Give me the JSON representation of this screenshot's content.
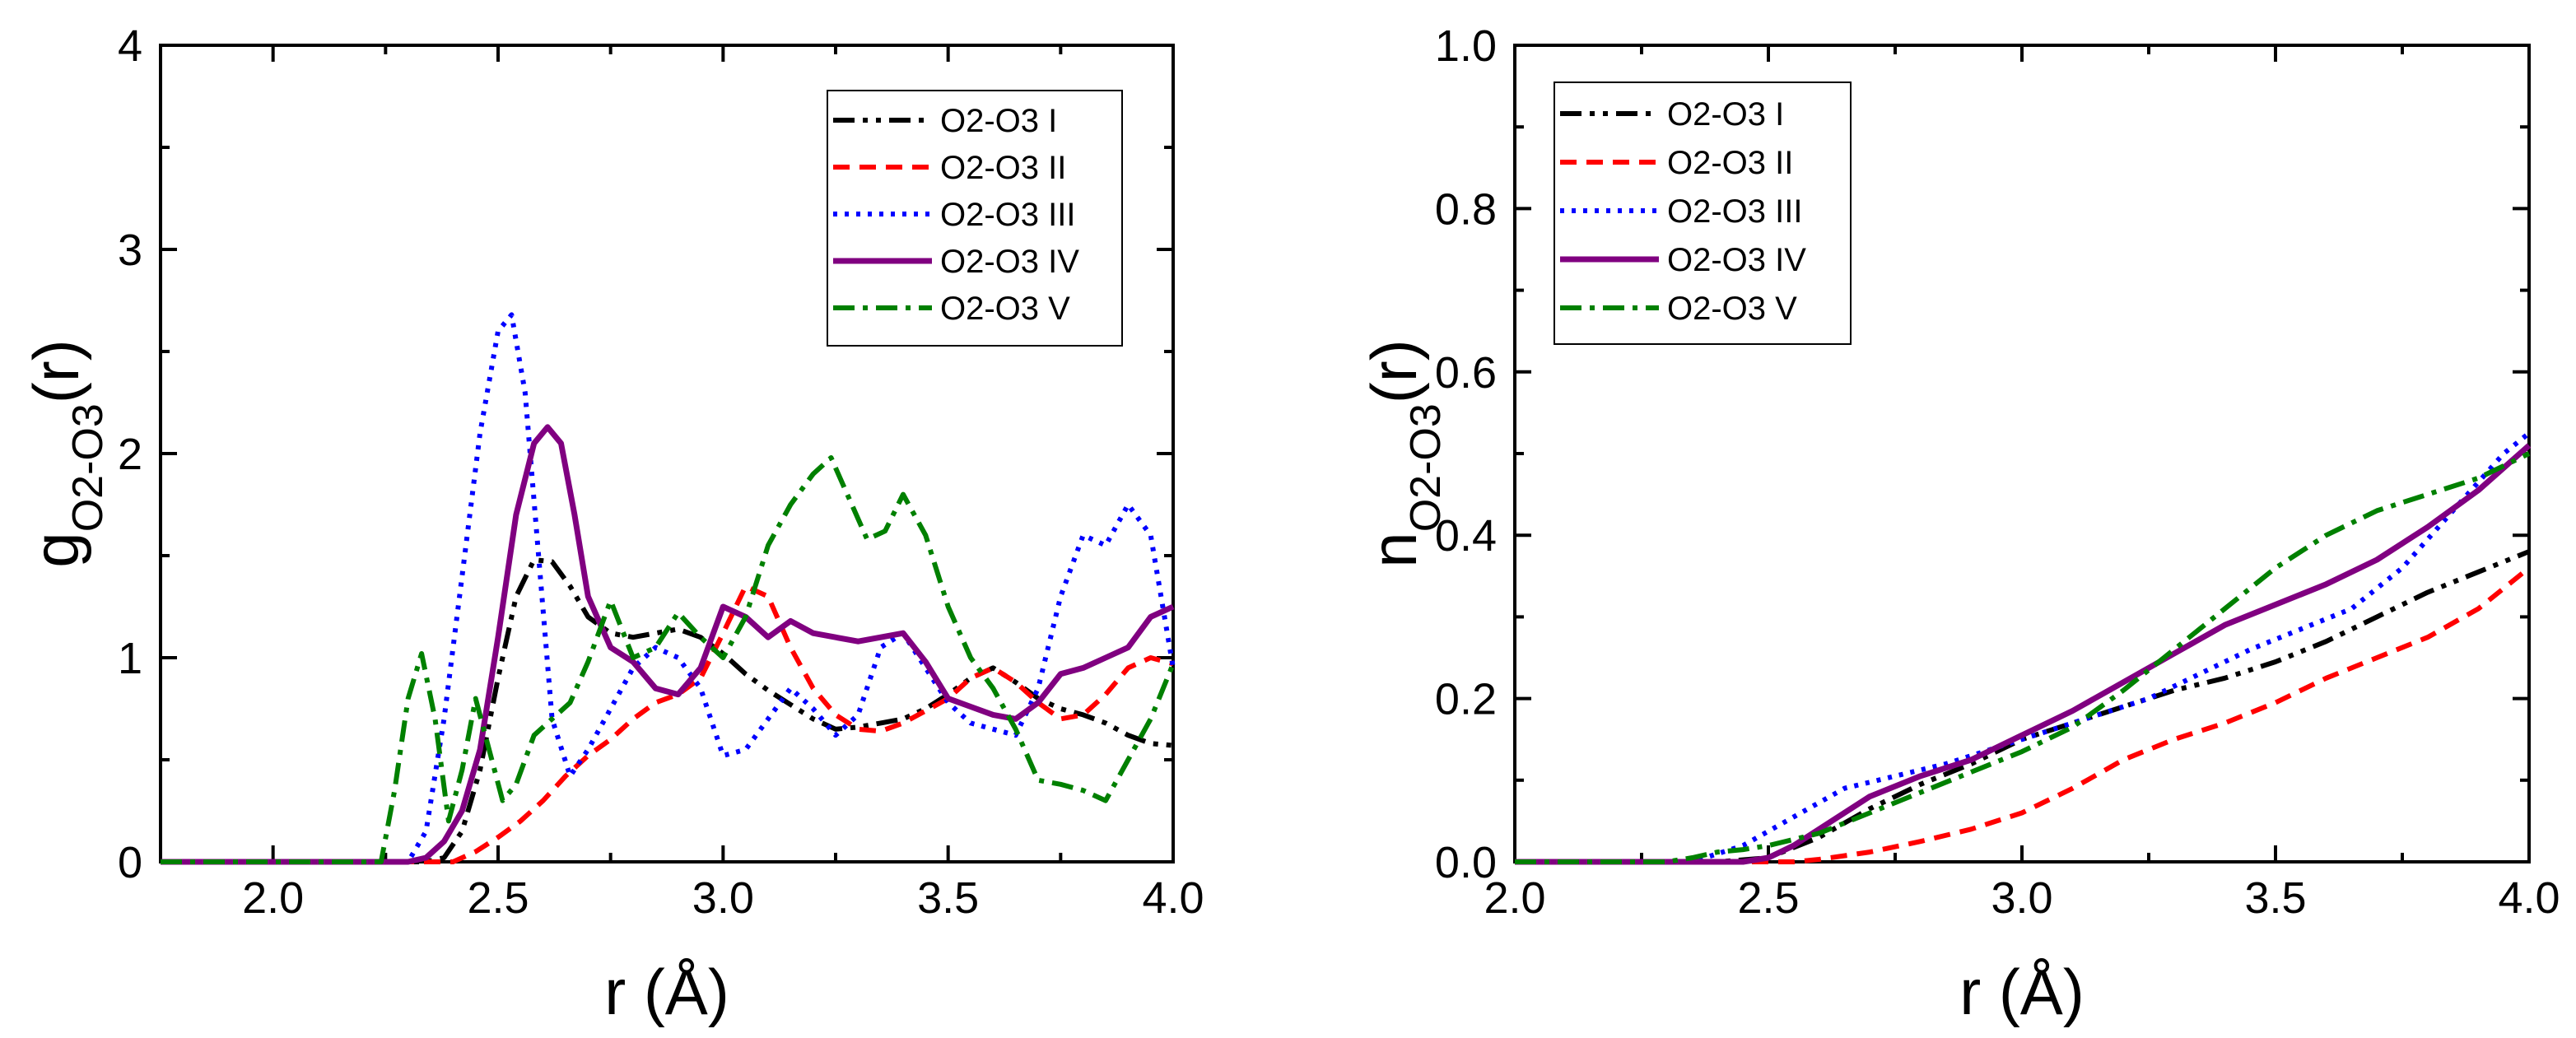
{
  "chart_data": [
    {
      "type": "line",
      "ylabel_main": "g",
      "ylabel_sub": "O2-O3",
      "ylabel_tail": "(r)",
      "xlabel": "r (Å)",
      "xlim": [
        1.75,
        4.0
      ],
      "ylim": [
        0,
        4
      ],
      "xticks": [
        2.0,
        2.5,
        3.0,
        3.5,
        4.0
      ],
      "xtick_labels": [
        "2.0",
        "2.5",
        "3.0",
        "3.5",
        "4.0"
      ],
      "yticks": [
        0,
        1,
        2,
        3,
        4
      ],
      "ytick_labels": [
        "0",
        "1",
        "2",
        "3",
        "4"
      ],
      "legend_position": "top-right",
      "series": [
        {
          "name": "O2-O3 I",
          "color": "#000000",
          "style": "dashdotdot",
          "x": [
            1.75,
            2.34,
            2.38,
            2.42,
            2.46,
            2.5,
            2.54,
            2.58,
            2.62,
            2.66,
            2.7,
            2.75,
            2.8,
            2.85,
            2.9,
            2.95,
            3.0,
            3.05,
            3.1,
            3.15,
            3.2,
            3.25,
            3.3,
            3.35,
            3.4,
            3.45,
            3.5,
            3.55,
            3.6,
            3.65,
            3.7,
            3.75,
            3.8,
            3.85,
            3.9,
            3.95,
            4.0
          ],
          "y": [
            0,
            0,
            0.02,
            0.15,
            0.45,
            0.9,
            1.3,
            1.48,
            1.47,
            1.35,
            1.2,
            1.12,
            1.1,
            1.12,
            1.14,
            1.1,
            1.02,
            0.92,
            0.84,
            0.77,
            0.7,
            0.65,
            0.66,
            0.68,
            0.7,
            0.75,
            0.82,
            0.9,
            0.95,
            0.88,
            0.8,
            0.75,
            0.72,
            0.68,
            0.62,
            0.58,
            0.57
          ]
        },
        {
          "name": "O2-O3 II",
          "color": "#ff0000",
          "style": "dash",
          "x": [
            1.75,
            2.4,
            2.45,
            2.5,
            2.55,
            2.6,
            2.65,
            2.7,
            2.75,
            2.8,
            2.85,
            2.9,
            2.95,
            3.0,
            3.05,
            3.1,
            3.15,
            3.2,
            3.25,
            3.3,
            3.35,
            3.4,
            3.45,
            3.5,
            3.55,
            3.6,
            3.65,
            3.7,
            3.75,
            3.8,
            3.85,
            3.9,
            3.95,
            4.0
          ],
          "y": [
            0,
            0,
            0.05,
            0.12,
            0.2,
            0.3,
            0.42,
            0.52,
            0.6,
            0.7,
            0.78,
            0.82,
            0.9,
            1.12,
            1.35,
            1.3,
            1.05,
            0.85,
            0.72,
            0.65,
            0.64,
            0.68,
            0.74,
            0.8,
            0.9,
            0.95,
            0.88,
            0.78,
            0.7,
            0.72,
            0.82,
            0.95,
            1.0,
            0.97
          ]
        },
        {
          "name": "O2-O3 III",
          "color": "#0000ff",
          "style": "dot",
          "x": [
            1.75,
            2.3,
            2.34,
            2.38,
            2.42,
            2.46,
            2.5,
            2.53,
            2.56,
            2.59,
            2.62,
            2.66,
            2.7,
            2.75,
            2.8,
            2.85,
            2.9,
            2.95,
            3.0,
            3.05,
            3.1,
            3.15,
            3.2,
            3.25,
            3.3,
            3.35,
            3.4,
            3.45,
            3.5,
            3.55,
            3.6,
            3.65,
            3.7,
            3.75,
            3.8,
            3.85,
            3.9,
            3.95,
            4.0
          ],
          "y": [
            0,
            0,
            0.15,
            0.7,
            1.4,
            2.1,
            2.6,
            2.68,
            2.3,
            1.5,
            0.7,
            0.42,
            0.55,
            0.75,
            0.95,
            1.05,
            1.0,
            0.85,
            0.52,
            0.55,
            0.7,
            0.85,
            0.75,
            0.62,
            0.72,
            1.05,
            1.12,
            0.95,
            0.78,
            0.68,
            0.65,
            0.62,
            0.85,
            1.3,
            1.6,
            1.55,
            1.75,
            1.6,
            0.95
          ]
        },
        {
          "name": "O2-O3 IV",
          "color": "#800080",
          "style": "solid",
          "x": [
            1.75,
            2.3,
            2.34,
            2.38,
            2.42,
            2.46,
            2.5,
            2.54,
            2.58,
            2.61,
            2.64,
            2.67,
            2.7,
            2.75,
            2.8,
            2.85,
            2.9,
            2.95,
            3.0,
            3.05,
            3.1,
            3.15,
            3.2,
            3.25,
            3.3,
            3.35,
            3.4,
            3.45,
            3.5,
            3.55,
            3.6,
            3.65,
            3.7,
            3.75,
            3.8,
            3.85,
            3.9,
            3.95,
            4.0
          ],
          "y": [
            0,
            0,
            0.02,
            0.1,
            0.25,
            0.55,
            1.1,
            1.7,
            2.05,
            2.13,
            2.05,
            1.7,
            1.3,
            1.05,
            0.98,
            0.85,
            0.82,
            0.95,
            1.25,
            1.2,
            1.1,
            1.18,
            1.12,
            1.1,
            1.08,
            1.1,
            1.12,
            0.98,
            0.8,
            0.76,
            0.72,
            0.7,
            0.78,
            0.92,
            0.95,
            1.0,
            1.05,
            1.2,
            1.25
          ]
        },
        {
          "name": "O2-O3 V",
          "color": "#008000",
          "style": "dashdot",
          "x": [
            1.75,
            2.24,
            2.27,
            2.3,
            2.33,
            2.36,
            2.39,
            2.42,
            2.45,
            2.48,
            2.51,
            2.54,
            2.58,
            2.62,
            2.66,
            2.7,
            2.75,
            2.8,
            2.85,
            2.9,
            2.95,
            3.0,
            3.05,
            3.1,
            3.15,
            3.2,
            3.24,
            3.28,
            3.32,
            3.36,
            3.4,
            3.45,
            3.5,
            3.55,
            3.6,
            3.65,
            3.7,
            3.75,
            3.8,
            3.85,
            3.9,
            3.95,
            4.0
          ],
          "y": [
            0,
            0,
            0.35,
            0.8,
            1.02,
            0.7,
            0.2,
            0.45,
            0.8,
            0.55,
            0.3,
            0.38,
            0.62,
            0.7,
            0.78,
            0.98,
            1.28,
            1.0,
            1.05,
            1.22,
            1.1,
            1.0,
            1.2,
            1.55,
            1.75,
            1.9,
            1.98,
            1.78,
            1.58,
            1.62,
            1.8,
            1.6,
            1.25,
            1.0,
            0.85,
            0.65,
            0.4,
            0.38,
            0.35,
            0.3,
            0.5,
            0.7,
            0.97
          ]
        }
      ]
    },
    {
      "type": "line",
      "ylabel_main": "n",
      "ylabel_sub": "O2-O3",
      "ylabel_tail": "(r)",
      "xlabel": "r (Å)",
      "xlim": [
        2.0,
        4.0
      ],
      "ylim": [
        0,
        1.0
      ],
      "xticks": [
        2.0,
        2.5,
        3.0,
        3.5,
        4.0
      ],
      "xtick_labels": [
        "2.0",
        "2.5",
        "3.0",
        "3.5",
        "4.0"
      ],
      "yticks": [
        0,
        0.2,
        0.4,
        0.6,
        0.8,
        1.0
      ],
      "ytick_labels": [
        "0.0",
        "0.2",
        "0.4",
        "0.6",
        "0.8",
        "1.0"
      ],
      "legend_position": "top-left",
      "series": [
        {
          "name": "O2-O3 I",
          "color": "#000000",
          "style": "dashdotdot",
          "x": [
            2.0,
            2.4,
            2.5,
            2.6,
            2.7,
            2.8,
            2.9,
            3.0,
            3.1,
            3.2,
            3.3,
            3.4,
            3.5,
            3.6,
            3.7,
            3.8,
            3.9,
            4.0
          ],
          "y": [
            0,
            0,
            0.005,
            0.03,
            0.065,
            0.095,
            0.12,
            0.15,
            0.17,
            0.19,
            0.21,
            0.225,
            0.245,
            0.27,
            0.3,
            0.33,
            0.355,
            0.38
          ]
        },
        {
          "name": "O2-O3 II",
          "color": "#ff0000",
          "style": "dash",
          "x": [
            2.0,
            2.55,
            2.6,
            2.7,
            2.8,
            2.9,
            3.0,
            3.1,
            3.2,
            3.3,
            3.4,
            3.5,
            3.6,
            3.7,
            3.8,
            3.9,
            4.0
          ],
          "y": [
            0,
            0,
            0.003,
            0.012,
            0.025,
            0.04,
            0.06,
            0.09,
            0.125,
            0.15,
            0.17,
            0.195,
            0.225,
            0.25,
            0.275,
            0.31,
            0.36
          ]
        },
        {
          "name": "O2-O3 III",
          "color": "#0000ff",
          "style": "dot",
          "x": [
            2.0,
            2.35,
            2.45,
            2.55,
            2.65,
            2.75,
            2.85,
            2.95,
            3.05,
            3.15,
            3.25,
            3.35,
            3.45,
            3.55,
            3.65,
            3.75,
            3.85,
            3.95,
            4.0
          ],
          "y": [
            0,
            0,
            0.02,
            0.055,
            0.09,
            0.105,
            0.12,
            0.14,
            0.16,
            0.18,
            0.2,
            0.23,
            0.26,
            0.285,
            0.31,
            0.36,
            0.43,
            0.5,
            0.525
          ]
        },
        {
          "name": "O2-O3 IV",
          "color": "#800080",
          "style": "solid",
          "x": [
            2.0,
            2.45,
            2.5,
            2.55,
            2.6,
            2.7,
            2.8,
            2.9,
            3.0,
            3.1,
            3.2,
            3.3,
            3.4,
            3.5,
            3.6,
            3.7,
            3.8,
            3.9,
            4.0
          ],
          "y": [
            0,
            0,
            0.005,
            0.02,
            0.04,
            0.08,
            0.105,
            0.125,
            0.155,
            0.185,
            0.22,
            0.255,
            0.29,
            0.315,
            0.34,
            0.37,
            0.41,
            0.455,
            0.51
          ]
        },
        {
          "name": "O2-O3 V",
          "color": "#008000",
          "style": "dashdot",
          "x": [
            2.0,
            2.3,
            2.35,
            2.4,
            2.45,
            2.5,
            2.6,
            2.7,
            2.8,
            2.9,
            3.0,
            3.1,
            3.2,
            3.3,
            3.4,
            3.5,
            3.6,
            3.7,
            3.8,
            3.9,
            4.0
          ],
          "y": [
            0,
            0,
            0.005,
            0.012,
            0.015,
            0.02,
            0.035,
            0.06,
            0.085,
            0.11,
            0.135,
            0.165,
            0.21,
            0.26,
            0.31,
            0.36,
            0.4,
            0.43,
            0.45,
            0.47,
            0.5
          ]
        }
      ]
    }
  ]
}
